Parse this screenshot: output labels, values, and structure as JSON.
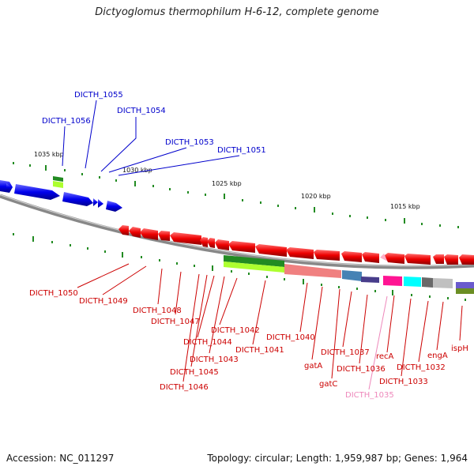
{
  "title": "Dictyoglomus thermophilum H-6-12, complete genome",
  "footer": {
    "accession": "Accession: NC_011297",
    "topology": "Topology: circular; Length: 1,959,987 bp; Genes: 1,964"
  },
  "scale": {
    "labels": [
      "1035 kbp",
      "1030 kbp",
      "1025 kbp",
      "1020 kbp",
      "1015 kbp"
    ]
  },
  "forward_genes": [
    "DICTH_1056",
    "DICTH_1055",
    "DICTH_1054",
    "DICTH_1053",
    "DICTH_1051"
  ],
  "reverse_genes": [
    "DICTH_1050",
    "DICTH_1049",
    "DICTH_1048",
    "DICTH_1047",
    "DICTH_1046",
    "DICTH_1045",
    "DICTH_1044",
    "DICTH_1043",
    "DICTH_1042",
    "DICTH_1041",
    "DICTH_1040",
    "gatA",
    "gatC",
    "DICTH_1037",
    "DICTH_1036",
    "DICTH_1035",
    "recA",
    "DICTH_1033",
    "DICTH_1032",
    "engA",
    "ispH"
  ],
  "colors": {
    "forward": "#0000ee",
    "reverse": "#ee0000",
    "reverse_label": "#cc0000",
    "pseudo_label": "#ee88bb",
    "backbone": "#888888",
    "tick": "#228b22"
  }
}
